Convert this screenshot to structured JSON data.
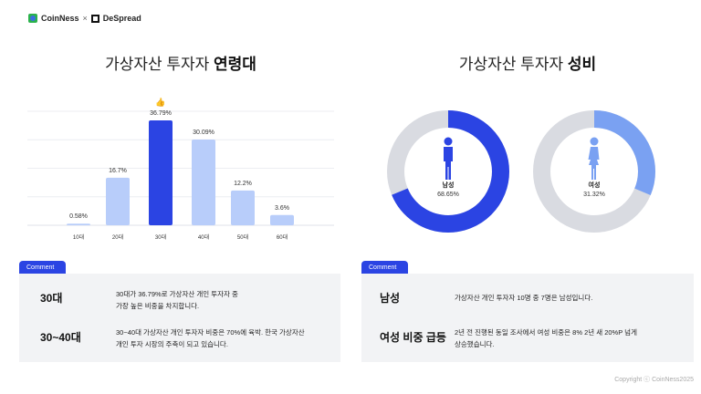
{
  "brand": {
    "left": "CoinNess",
    "sep": "×",
    "right": "DeSpread"
  },
  "age_title": {
    "normal": "가상자산 투자자 ",
    "bold": "연령대"
  },
  "gender_title": {
    "normal": "가상자산 투자자 ",
    "bold": "성비"
  },
  "chart_data": [
    {
      "type": "bar",
      "title": "가상자산 투자자 연령대",
      "categories": [
        "10대",
        "20대",
        "30대",
        "40대",
        "50대",
        "60대"
      ],
      "values": [
        0.58,
        16.7,
        36.79,
        30.09,
        12.2,
        3.6
      ],
      "labels": [
        "0.58%",
        "16.7%",
        "36.79%",
        "30.09%",
        "12.2%",
        "3.6%"
      ],
      "highlight": "30대",
      "ylim": [
        0,
        40
      ],
      "grid": true,
      "colors": {
        "bar": "#b8cdfa",
        "highlight": "#2b44e3"
      }
    },
    {
      "type": "pie",
      "title": "가상자산 투자자 성비",
      "slices": [
        {
          "name": "남성",
          "value": 68.65,
          "label": "68.65%",
          "color": "#2b44e3"
        },
        {
          "name": "여성",
          "value": 31.32,
          "label": "31.32%",
          "color": "#7aa1f2"
        }
      ],
      "track_color": "#d9dbe1"
    }
  ],
  "comment_left": {
    "tab": "Comment",
    "rows": [
      {
        "label": "30대",
        "desc": [
          "30대가 36.79%로 가상자산 개인 투자자 중",
          "가장 높은 비중을 차지합니다."
        ]
      },
      {
        "label": "30~40대",
        "desc": [
          "30~40대 가상자산 개인 투자자 비중은 70%에 육박. 한국 가상자산",
          "개인 투자 시장의 주축이 되고 있습니다."
        ]
      }
    ]
  },
  "comment_right": {
    "tab": "Comment",
    "rows": [
      {
        "label": "남성",
        "desc": [
          "가상자산 개인 투자자 10명 중 7명은 남성입니다."
        ]
      },
      {
        "label": "여성 비중 급등",
        "desc": [
          "2년 전 진행된 동일 조사에서 여성 비중은 8% 2년 새 20%P 넘게",
          "상승했습니다."
        ]
      }
    ]
  },
  "copyright": "Copyright ⓒ CoinNess2025"
}
